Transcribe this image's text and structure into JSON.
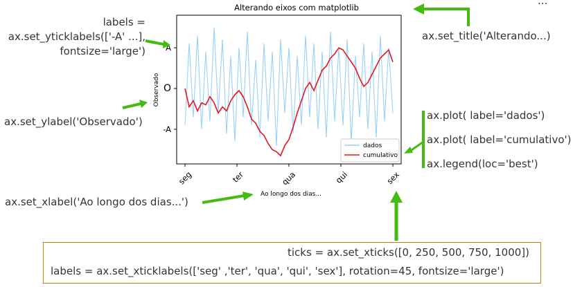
{
  "annotations": {
    "yticklabels_code": [
      "labels =",
      "ax.set_yticklabels(['-A' ...],",
      "fontsize='large')"
    ],
    "ylabel_code": "ax.set_ylabel('Observado')",
    "xlabel_code": "ax.set_xlabel('Ao longo dos dias...')",
    "title_code": "ax.set_title('Alterando...)",
    "plot_dados_code": "ax.plot( label='dados')",
    "plot_cumulativo_code": "ax.plot( label='cumulativo')",
    "legend_code": "ax.legend(loc='best')",
    "xticks_code": "ticks = ax.set_xticks([0, 250, 500, 750, 1000])",
    "xticklabels_code": "labels = ax.set_xticklabels(['seg' ,'ter', 'qua', 'qui', 'sex'],  rotation=45, fontsize='large')",
    "ellipsis": "..."
  },
  "colors": {
    "arrow": "#44bb11",
    "dados": "#99d1f7",
    "cumulativo": "#e8141e",
    "box_border": "#b8860b"
  },
  "chart_data": {
    "type": "line",
    "title": "Alterando eixos com matplotlib",
    "xlabel": "Ao longo dos dias...",
    "ylabel": "Observado",
    "xticks": [
      0,
      250,
      500,
      750,
      1000
    ],
    "xticklabels": [
      "seg",
      "ter",
      "qua",
      "qui",
      "sex"
    ],
    "yticks": [
      -1,
      0,
      1
    ],
    "yticklabels": [
      "-A",
      "O",
      "A"
    ],
    "xlim": [
      -40,
      1040
    ],
    "ylim": [
      -1.85,
      1.8
    ],
    "legend": {
      "position": "lower-right",
      "entries": [
        "dados",
        "cumulativo"
      ]
    },
    "series": [
      {
        "name": "dados",
        "x": [
          0,
          20,
          40,
          60,
          80,
          100,
          120,
          140,
          160,
          180,
          200,
          220,
          240,
          260,
          280,
          300,
          320,
          340,
          360,
          380,
          400,
          420,
          440,
          460,
          480,
          500,
          520,
          540,
          560,
          580,
          600,
          620,
          640,
          660,
          680,
          700,
          720,
          740,
          760,
          780,
          800,
          820,
          840,
          860,
          880,
          900,
          920,
          940,
          960,
          980,
          1000
        ],
        "values": [
          -0.9,
          1.1,
          -0.7,
          1.3,
          -1.0,
          0.9,
          -0.8,
          1.5,
          -0.6,
          1.2,
          -1.1,
          0.8,
          -1.3,
          1.0,
          -0.7,
          1.4,
          -0.9,
          0.7,
          -1.2,
          1.1,
          -0.8,
          0.9,
          -1.4,
          1.2,
          -0.6,
          1.0,
          -1.1,
          0.8,
          -0.9,
          1.3,
          -0.7,
          1.1,
          -1.0,
          0.9,
          -1.2,
          1.4,
          -0.8,
          1.0,
          -0.9,
          1.2,
          -1.3,
          0.8,
          -0.7,
          1.1,
          -1.0,
          0.9,
          -1.2,
          1.3,
          -0.8,
          1.0,
          -0.6
        ]
      },
      {
        "name": "cumulativo",
        "x": [
          0,
          20,
          40,
          60,
          80,
          100,
          120,
          140,
          160,
          180,
          200,
          220,
          240,
          260,
          280,
          300,
          320,
          340,
          360,
          380,
          400,
          420,
          440,
          460,
          480,
          500,
          520,
          540,
          560,
          580,
          600,
          620,
          640,
          660,
          680,
          700,
          720,
          740,
          760,
          780,
          800,
          820,
          840,
          860,
          880,
          900,
          920,
          940,
          960,
          980,
          1000
        ],
        "values": [
          0.0,
          -0.45,
          -0.3,
          -0.55,
          -0.35,
          -0.4,
          -0.2,
          -0.35,
          -0.6,
          -0.45,
          -0.55,
          -0.3,
          -0.15,
          -0.05,
          -0.2,
          -0.45,
          -0.75,
          -0.85,
          -1.05,
          -1.15,
          -1.35,
          -1.5,
          -1.55,
          -1.65,
          -1.4,
          -1.25,
          -0.95,
          -0.6,
          -0.3,
          0.0,
          0.15,
          -0.05,
          0.2,
          0.45,
          0.55,
          0.75,
          0.85,
          1.0,
          0.95,
          0.8,
          0.65,
          0.5,
          0.25,
          0.05,
          0.15,
          0.35,
          0.55,
          0.75,
          0.85,
          0.95,
          0.65
        ]
      }
    ]
  }
}
